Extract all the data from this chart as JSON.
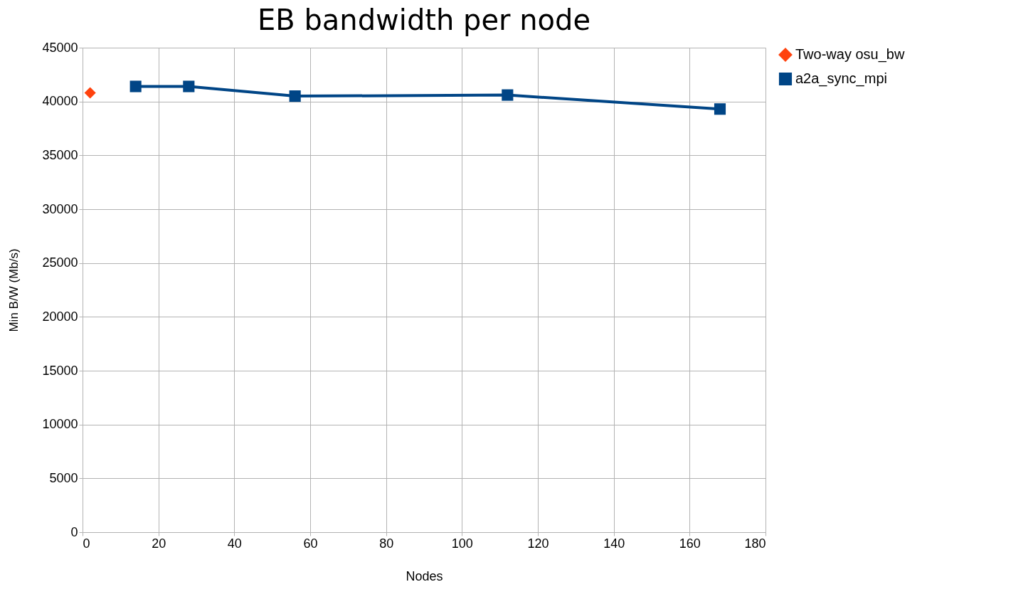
{
  "chart_data": {
    "type": "line",
    "title": "EB bandwidth per node",
    "xlabel": "Nodes",
    "ylabel": "Min B/W (Mb/s)",
    "xlim": [
      0,
      180
    ],
    "xticks": [
      0,
      20,
      40,
      60,
      80,
      100,
      120,
      140,
      160,
      180
    ],
    "ylim": [
      0,
      45000
    ],
    "yticks": [
      0,
      5000,
      10000,
      15000,
      20000,
      25000,
      30000,
      35000,
      40000,
      45000
    ],
    "grid": true,
    "legend": "right",
    "line_style": "solid",
    "series": [
      {
        "name": "Two-way osu_bw",
        "color": "#ff420e",
        "marker": "diamond",
        "x": [
          2
        ],
        "values": [
          40800
        ]
      },
      {
        "name": "a2a_sync_mpi",
        "color": "#004586",
        "marker": "square",
        "x": [
          14,
          28,
          56,
          112,
          168
        ],
        "values": [
          41400,
          41400,
          40500,
          40600,
          39300
        ]
      }
    ]
  }
}
